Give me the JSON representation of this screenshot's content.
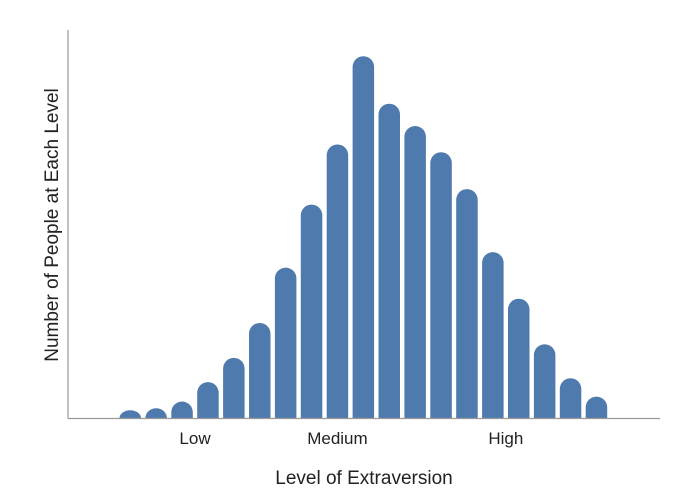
{
  "chart_data": {
    "type": "bar",
    "title": "",
    "xlabel": "Level of Extraversion",
    "ylabel": "Number of People at Each Level",
    "x_tick_labels": [
      {
        "label": "Low",
        "at_bar": 3.5
      },
      {
        "label": "Medium",
        "at_bar": 9
      },
      {
        "label": "High",
        "at_bar": 15.5
      }
    ],
    "categories": [
      1,
      2,
      3,
      4,
      5,
      6,
      7,
      8,
      9,
      10,
      11,
      12,
      13,
      14,
      15,
      16,
      17,
      18,
      19
    ],
    "values": [
      8,
      10,
      17,
      37,
      62,
      98,
      155,
      220,
      282,
      373,
      324,
      301,
      274,
      236,
      171,
      123,
      76,
      41,
      22
    ],
    "ylim": [
      0,
      400
    ],
    "y_ticks_shown": false,
    "grid": false,
    "bar_color": "#4f7aae",
    "axis_color": "#999999"
  }
}
